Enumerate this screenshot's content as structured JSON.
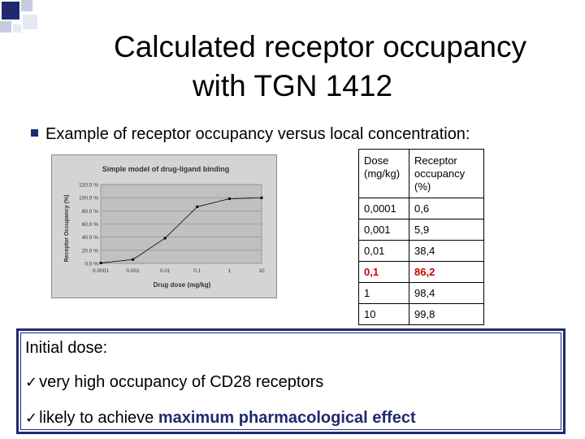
{
  "title": {
    "line1": "Calculated receptor occupancy",
    "line2": "with TGN 1412"
  },
  "bullet": "Example of receptor occupancy versus local concentration:",
  "chart_data": {
    "type": "line",
    "title": "Simple model of drug-ligand binding",
    "xlabel": "Drug dose (mg/kg)",
    "ylabel": "Receptor Occupancy (%)",
    "x_scale": "log",
    "x_ticks": [
      "0.0001",
      "0.001",
      "0.01",
      "0.1",
      "1",
      "10"
    ],
    "y_ticks": [
      "0.0 %",
      "20.0 %",
      "40.0 %",
      "60.0 %",
      "80.0 %",
      "100.0 %",
      "120.0 %"
    ],
    "ylim": [
      0,
      120
    ],
    "grid": true,
    "series": [
      {
        "x": [
          0.0001,
          0.001,
          0.01,
          0.1,
          1,
          10
        ],
        "y": [
          0.6,
          5.9,
          38.4,
          86.2,
          98.4,
          99.8
        ]
      }
    ],
    "colors": {
      "plot_bg": "#c0c0c0",
      "frame_bg": "#d4d4d4",
      "line": "#000000"
    }
  },
  "table": {
    "headers": [
      "Dose (mg/kg)",
      "Receptor occupancy (%)"
    ],
    "rows": [
      {
        "dose": "0,0001",
        "occ": "0,6",
        "highlight": false
      },
      {
        "dose": "0,001",
        "occ": "5,9",
        "highlight": false
      },
      {
        "dose": "0,01",
        "occ": "38,4",
        "highlight": false
      },
      {
        "dose": "0,1",
        "occ": "86,2",
        "highlight": true
      },
      {
        "dose": "1",
        "occ": "98,4",
        "highlight": false
      },
      {
        "dose": "10",
        "occ": "99,8",
        "highlight": false
      }
    ]
  },
  "box": {
    "heading": "Initial dose:",
    "check": "ü",
    "item1": "very high occupancy of CD28 receptors",
    "item2_prefix": "likely to achieve ",
    "item2_emphasis": "maximum pharmacological effect"
  },
  "colors": {
    "accent": "#1f2a6e",
    "highlight": "#cc0000"
  }
}
